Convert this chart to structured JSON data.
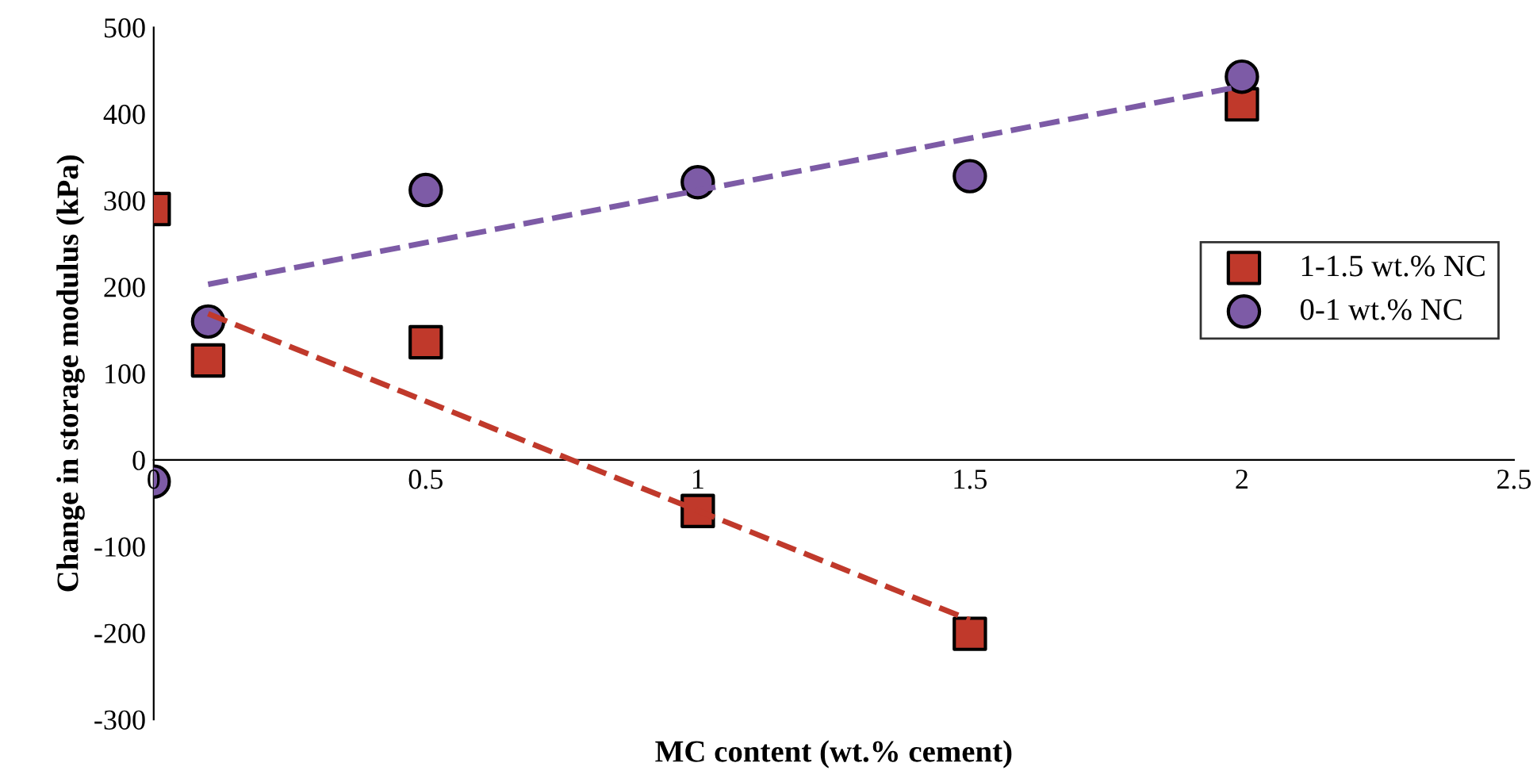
{
  "chart_data": {
    "type": "scatter",
    "xlabel": "MC content (wt.% cement)",
    "ylabel": "Change in storage modulus (kPa)",
    "xlim": [
      0,
      2.5
    ],
    "xticks": [
      0,
      0.5,
      1,
      1.5,
      2,
      2.5
    ],
    "ylim": [
      -300,
      500
    ],
    "yticks": [
      -300,
      -200,
      -100,
      0,
      100,
      200,
      300,
      400,
      500
    ],
    "grid": false,
    "legend": "right",
    "series": [
      {
        "name": "1-1.5 wt.% NC",
        "color": "#c0392b",
        "marker": "square",
        "x": [
          0,
          0.1,
          0.5,
          1,
          1.5,
          2
        ],
        "values": [
          290,
          115,
          136,
          -59,
          -201,
          411
        ]
      },
      {
        "name": "0-1 wt.% NC",
        "color": "#7d5ba6",
        "marker": "circle",
        "x": [
          0,
          0.1,
          0.5,
          1,
          1.5,
          2
        ],
        "values": [
          -25,
          160,
          312,
          321,
          328,
          443
        ]
      },
      {
        "type": "line",
        "color": "#7d5ba6",
        "line_style": "dashed",
        "x": [
          0.1,
          2
        ],
        "values": [
          203,
          432
        ]
      },
      {
        "type": "line",
        "color": "#c0392b",
        "line_style": "dashed",
        "x": [
          0.1,
          1.5
        ],
        "values": [
          169,
          -185
        ]
      }
    ]
  }
}
